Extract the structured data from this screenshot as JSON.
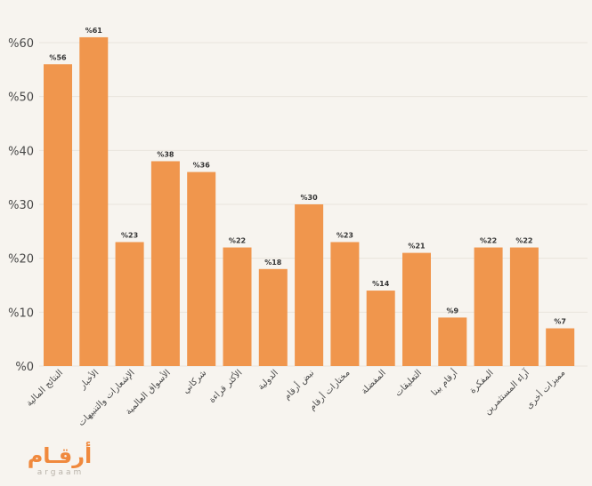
{
  "chart_data": {
    "type": "bar",
    "categories": [
      "النتائج المالية",
      "الأخبار",
      "الإشعارات والتنبيهات",
      "الأسواق العالمية",
      "شركاتي",
      "الأكثر قراءة",
      "الدولية",
      "نبض أرقام",
      "مختارات أرقام",
      "المفضلة",
      "التعليقات",
      "أرقام بينا",
      "المفكرة",
      "آراء المستثمرين",
      "مميزات أخرى"
    ],
    "values": [
      56,
      61,
      23,
      38,
      36,
      22,
      18,
      30,
      23,
      14,
      21,
      9,
      22,
      22,
      7
    ],
    "value_labels": [
      "%56",
      "%61",
      "%23",
      "%38",
      "%36",
      "%22",
      "%18",
      "%30",
      "%23",
      "%14",
      "%21",
      "%9",
      "%22",
      "%22",
      "%7"
    ],
    "y_ticks": [
      0,
      10,
      20,
      30,
      40,
      50,
      60
    ],
    "y_tick_labels": [
      "%0",
      "%10",
      "%20",
      "%30",
      "%40",
      "%50",
      "%60"
    ],
    "ylim": [
      0,
      61
    ],
    "grid": true,
    "colors": {
      "bar": "#f0964d",
      "background": "#f7f4ef",
      "grid": "#e9e4dc",
      "text": "#4a4a4a"
    }
  },
  "logo": {
    "arabic": "أرقـام",
    "latin": "argaam"
  }
}
